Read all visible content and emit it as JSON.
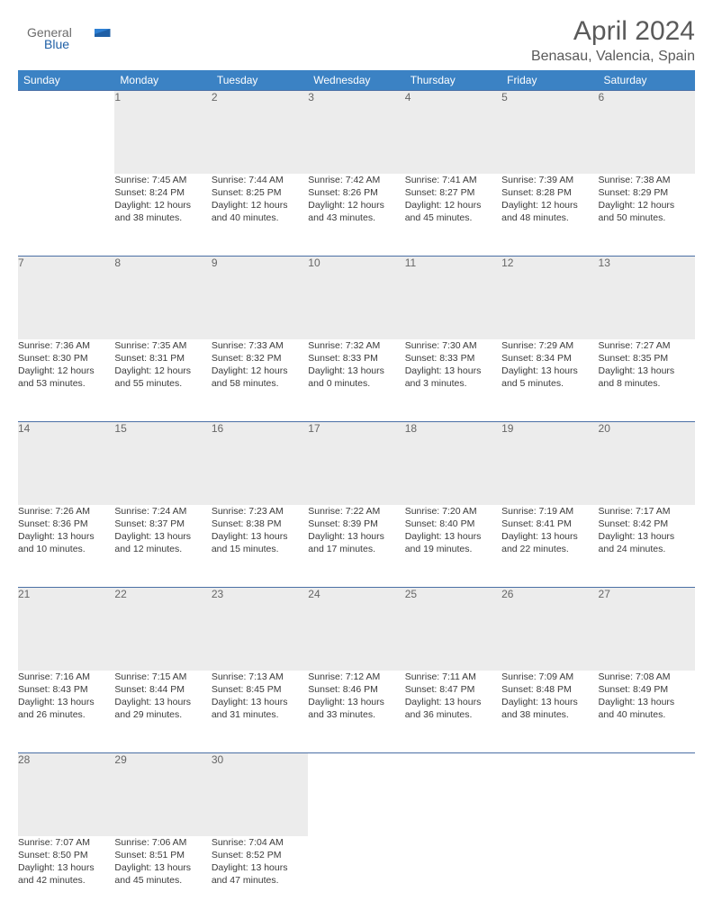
{
  "brand": {
    "name1": "General",
    "name2": "Blue"
  },
  "title": "April 2024",
  "location": "Benasau, Valencia, Spain",
  "colors": {
    "header_bg": "#3b82c4",
    "header_text": "#ffffff",
    "daynum_bg": "#ececec",
    "daynum_text": "#666666",
    "rule": "#4a6fa5",
    "brand_gray": "#6b6b6b",
    "brand_blue": "#1f5fa6"
  },
  "weekdays": [
    "Sunday",
    "Monday",
    "Tuesday",
    "Wednesday",
    "Thursday",
    "Friday",
    "Saturday"
  ],
  "weeks": [
    {
      "nums": [
        "",
        "1",
        "2",
        "3",
        "4",
        "5",
        "6"
      ],
      "cells": [
        null,
        {
          "sunrise": "Sunrise: 7:45 AM",
          "sunset": "Sunset: 8:24 PM",
          "day1": "Daylight: 12 hours",
          "day2": "and 38 minutes."
        },
        {
          "sunrise": "Sunrise: 7:44 AM",
          "sunset": "Sunset: 8:25 PM",
          "day1": "Daylight: 12 hours",
          "day2": "and 40 minutes."
        },
        {
          "sunrise": "Sunrise: 7:42 AM",
          "sunset": "Sunset: 8:26 PM",
          "day1": "Daylight: 12 hours",
          "day2": "and 43 minutes."
        },
        {
          "sunrise": "Sunrise: 7:41 AM",
          "sunset": "Sunset: 8:27 PM",
          "day1": "Daylight: 12 hours",
          "day2": "and 45 minutes."
        },
        {
          "sunrise": "Sunrise: 7:39 AM",
          "sunset": "Sunset: 8:28 PM",
          "day1": "Daylight: 12 hours",
          "day2": "and 48 minutes."
        },
        {
          "sunrise": "Sunrise: 7:38 AM",
          "sunset": "Sunset: 8:29 PM",
          "day1": "Daylight: 12 hours",
          "day2": "and 50 minutes."
        }
      ]
    },
    {
      "nums": [
        "7",
        "8",
        "9",
        "10",
        "11",
        "12",
        "13"
      ],
      "cells": [
        {
          "sunrise": "Sunrise: 7:36 AM",
          "sunset": "Sunset: 8:30 PM",
          "day1": "Daylight: 12 hours",
          "day2": "and 53 minutes."
        },
        {
          "sunrise": "Sunrise: 7:35 AM",
          "sunset": "Sunset: 8:31 PM",
          "day1": "Daylight: 12 hours",
          "day2": "and 55 minutes."
        },
        {
          "sunrise": "Sunrise: 7:33 AM",
          "sunset": "Sunset: 8:32 PM",
          "day1": "Daylight: 12 hours",
          "day2": "and 58 minutes."
        },
        {
          "sunrise": "Sunrise: 7:32 AM",
          "sunset": "Sunset: 8:33 PM",
          "day1": "Daylight: 13 hours",
          "day2": "and 0 minutes."
        },
        {
          "sunrise": "Sunrise: 7:30 AM",
          "sunset": "Sunset: 8:33 PM",
          "day1": "Daylight: 13 hours",
          "day2": "and 3 minutes."
        },
        {
          "sunrise": "Sunrise: 7:29 AM",
          "sunset": "Sunset: 8:34 PM",
          "day1": "Daylight: 13 hours",
          "day2": "and 5 minutes."
        },
        {
          "sunrise": "Sunrise: 7:27 AM",
          "sunset": "Sunset: 8:35 PM",
          "day1": "Daylight: 13 hours",
          "day2": "and 8 minutes."
        }
      ]
    },
    {
      "nums": [
        "14",
        "15",
        "16",
        "17",
        "18",
        "19",
        "20"
      ],
      "cells": [
        {
          "sunrise": "Sunrise: 7:26 AM",
          "sunset": "Sunset: 8:36 PM",
          "day1": "Daylight: 13 hours",
          "day2": "and 10 minutes."
        },
        {
          "sunrise": "Sunrise: 7:24 AM",
          "sunset": "Sunset: 8:37 PM",
          "day1": "Daylight: 13 hours",
          "day2": "and 12 minutes."
        },
        {
          "sunrise": "Sunrise: 7:23 AM",
          "sunset": "Sunset: 8:38 PM",
          "day1": "Daylight: 13 hours",
          "day2": "and 15 minutes."
        },
        {
          "sunrise": "Sunrise: 7:22 AM",
          "sunset": "Sunset: 8:39 PM",
          "day1": "Daylight: 13 hours",
          "day2": "and 17 minutes."
        },
        {
          "sunrise": "Sunrise: 7:20 AM",
          "sunset": "Sunset: 8:40 PM",
          "day1": "Daylight: 13 hours",
          "day2": "and 19 minutes."
        },
        {
          "sunrise": "Sunrise: 7:19 AM",
          "sunset": "Sunset: 8:41 PM",
          "day1": "Daylight: 13 hours",
          "day2": "and 22 minutes."
        },
        {
          "sunrise": "Sunrise: 7:17 AM",
          "sunset": "Sunset: 8:42 PM",
          "day1": "Daylight: 13 hours",
          "day2": "and 24 minutes."
        }
      ]
    },
    {
      "nums": [
        "21",
        "22",
        "23",
        "24",
        "25",
        "26",
        "27"
      ],
      "cells": [
        {
          "sunrise": "Sunrise: 7:16 AM",
          "sunset": "Sunset: 8:43 PM",
          "day1": "Daylight: 13 hours",
          "day2": "and 26 minutes."
        },
        {
          "sunrise": "Sunrise: 7:15 AM",
          "sunset": "Sunset: 8:44 PM",
          "day1": "Daylight: 13 hours",
          "day2": "and 29 minutes."
        },
        {
          "sunrise": "Sunrise: 7:13 AM",
          "sunset": "Sunset: 8:45 PM",
          "day1": "Daylight: 13 hours",
          "day2": "and 31 minutes."
        },
        {
          "sunrise": "Sunrise: 7:12 AM",
          "sunset": "Sunset: 8:46 PM",
          "day1": "Daylight: 13 hours",
          "day2": "and 33 minutes."
        },
        {
          "sunrise": "Sunrise: 7:11 AM",
          "sunset": "Sunset: 8:47 PM",
          "day1": "Daylight: 13 hours",
          "day2": "and 36 minutes."
        },
        {
          "sunrise": "Sunrise: 7:09 AM",
          "sunset": "Sunset: 8:48 PM",
          "day1": "Daylight: 13 hours",
          "day2": "and 38 minutes."
        },
        {
          "sunrise": "Sunrise: 7:08 AM",
          "sunset": "Sunset: 8:49 PM",
          "day1": "Daylight: 13 hours",
          "day2": "and 40 minutes."
        }
      ]
    },
    {
      "nums": [
        "28",
        "29",
        "30",
        "",
        "",
        "",
        ""
      ],
      "cells": [
        {
          "sunrise": "Sunrise: 7:07 AM",
          "sunset": "Sunset: 8:50 PM",
          "day1": "Daylight: 13 hours",
          "day2": "and 42 minutes."
        },
        {
          "sunrise": "Sunrise: 7:06 AM",
          "sunset": "Sunset: 8:51 PM",
          "day1": "Daylight: 13 hours",
          "day2": "and 45 minutes."
        },
        {
          "sunrise": "Sunrise: 7:04 AM",
          "sunset": "Sunset: 8:52 PM",
          "day1": "Daylight: 13 hours",
          "day2": "and 47 minutes."
        },
        null,
        null,
        null,
        null
      ]
    }
  ]
}
